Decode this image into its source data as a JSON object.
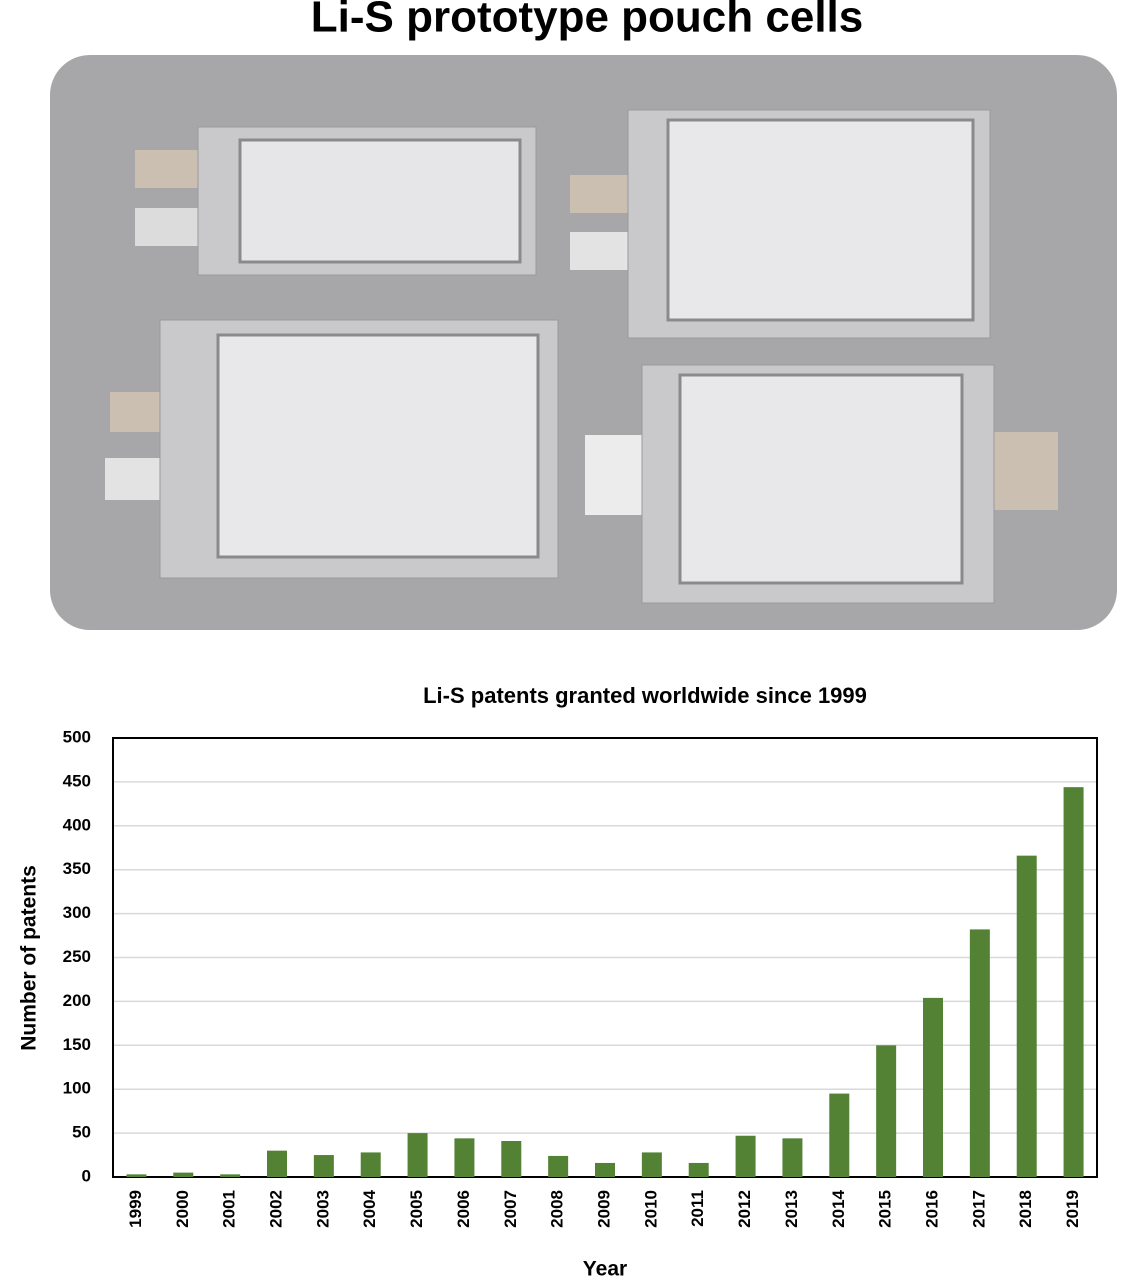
{
  "photo_title": "Li-S prototype pouch cells",
  "chart_data": {
    "type": "bar",
    "title": "Li-S patents granted worldwide since 1999",
    "x_label": "Year",
    "y_label": "Number of patents",
    "categories": [
      "1999",
      "2000",
      "2001",
      "2002",
      "2003",
      "2004",
      "2005",
      "2006",
      "2007",
      "2008",
      "2009",
      "2010",
      "2011",
      "2012",
      "2013",
      "2014",
      "2015",
      "2016",
      "2017",
      "2018",
      "2019"
    ],
    "values": [
      3,
      5,
      3,
      30,
      25,
      28,
      50,
      44,
      41,
      24,
      16,
      28,
      16,
      47,
      44,
      95,
      150,
      204,
      282,
      366,
      444
    ],
    "color": "#548235",
    "ylim": [
      0,
      500
    ],
    "yticks": [
      0,
      50,
      100,
      150,
      200,
      250,
      300,
      350,
      400,
      450,
      500
    ],
    "grid": true
  }
}
